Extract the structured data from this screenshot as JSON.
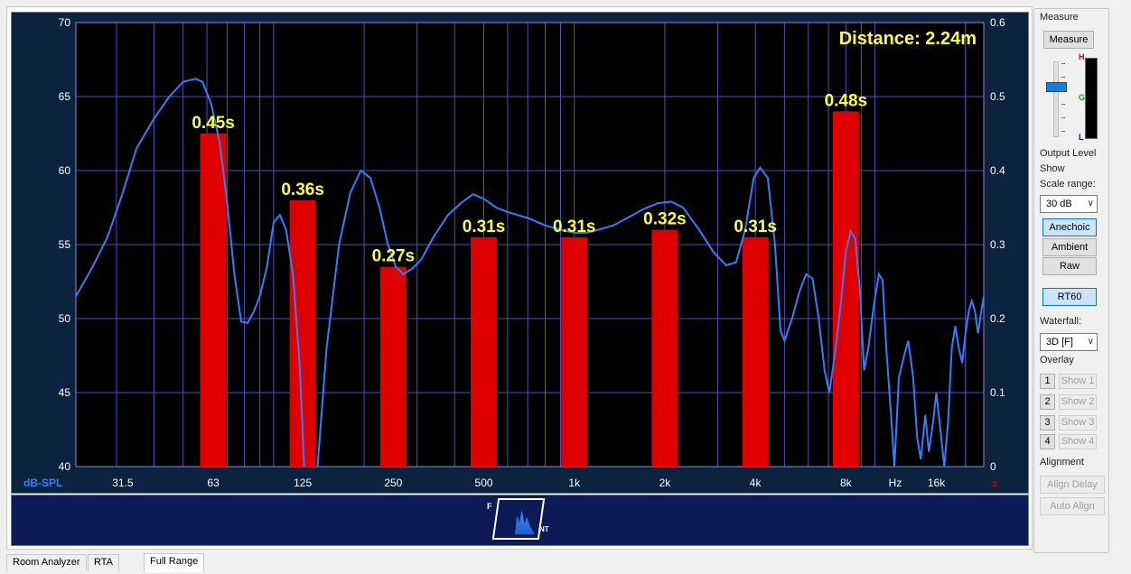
{
  "chart_data": {
    "type": "bar",
    "annotation": "Distance: 2.24m",
    "left_axis": {
      "label": "dB-SPL",
      "ylim": [
        40,
        70
      ],
      "ticks": [
        "40",
        "45",
        "50",
        "55",
        "60",
        "65",
        "70"
      ]
    },
    "right_axis": {
      "unit": "s",
      "ylim": [
        0,
        0.6
      ],
      "ticks": [
        "0",
        "0.1",
        "0.2",
        "0.3",
        "0.4",
        "0.5",
        "0.6"
      ]
    },
    "x_axis": {
      "unit": "Hz",
      "scale": "log",
      "xlim": [
        22,
        23000
      ],
      "ticks": [
        {
          "f": 31.5,
          "label": "31.5"
        },
        {
          "f": 63,
          "label": "63"
        },
        {
          "f": 125,
          "label": "125"
        },
        {
          "f": 250,
          "label": "250"
        },
        {
          "f": 500,
          "label": "500"
        },
        {
          "f": 1000,
          "label": "1k"
        },
        {
          "f": 2000,
          "label": "2k"
        },
        {
          "f": 4000,
          "label": "4k"
        },
        {
          "f": 8000,
          "label": "8k"
        },
        {
          "f": 16000,
          "label": "16k"
        }
      ]
    },
    "rt60_bars": [
      {
        "f": 63,
        "value": 0.45,
        "label": "0.45s"
      },
      {
        "f": 125,
        "value": 0.36,
        "label": "0.36s"
      },
      {
        "f": 250,
        "value": 0.27,
        "label": "0.27s"
      },
      {
        "f": 500,
        "value": 0.31,
        "label": "0.31s"
      },
      {
        "f": 1000,
        "value": 0.31,
        "label": "0.31s"
      },
      {
        "f": 2000,
        "value": 0.32,
        "label": "0.32s"
      },
      {
        "f": 4000,
        "value": 0.31,
        "label": "0.31s"
      },
      {
        "f": 8000,
        "value": 0.48,
        "label": "0.48s"
      }
    ],
    "spl_curve": [
      [
        22,
        51.5
      ],
      [
        25,
        53.5
      ],
      [
        28,
        55.5
      ],
      [
        31.5,
        58.5
      ],
      [
        35,
        61.5
      ],
      [
        40,
        63.5
      ],
      [
        45,
        65
      ],
      [
        50,
        66
      ],
      [
        55,
        66.2
      ],
      [
        58,
        66
      ],
      [
        62,
        64.5
      ],
      [
        66,
        62
      ],
      [
        70,
        58
      ],
      [
        74,
        53
      ],
      [
        78,
        49.8
      ],
      [
        82,
        49.7
      ],
      [
        86,
        50.5
      ],
      [
        90,
        51.5
      ],
      [
        95,
        53.5
      ],
      [
        100,
        56.5
      ],
      [
        105,
        57
      ],
      [
        110,
        56
      ],
      [
        116,
        53
      ],
      [
        122,
        47
      ],
      [
        127,
        39
      ],
      [
        130,
        38
      ],
      [
        140,
        40
      ],
      [
        150,
        48
      ],
      [
        165,
        55
      ],
      [
        180,
        58.5
      ],
      [
        195,
        60
      ],
      [
        210,
        59.5
      ],
      [
        225,
        57.5
      ],
      [
        240,
        55
      ],
      [
        255,
        53.5
      ],
      [
        270,
        53
      ],
      [
        290,
        53.4
      ],
      [
        310,
        54
      ],
      [
        340,
        55.5
      ],
      [
        380,
        57
      ],
      [
        420,
        57.8
      ],
      [
        460,
        58.4
      ],
      [
        500,
        58.1
      ],
      [
        550,
        57.5
      ],
      [
        600,
        57.2
      ],
      [
        700,
        56.8
      ],
      [
        800,
        56.3
      ],
      [
        900,
        56
      ],
      [
        1000,
        55.8
      ],
      [
        1100,
        55.8
      ],
      [
        1200,
        56
      ],
      [
        1350,
        56.3
      ],
      [
        1500,
        56.8
      ],
      [
        1700,
        57.4
      ],
      [
        1900,
        57.8
      ],
      [
        2100,
        57.9
      ],
      [
        2300,
        57.5
      ],
      [
        2600,
        56
      ],
      [
        2900,
        54.5
      ],
      [
        3200,
        53.6
      ],
      [
        3450,
        53.8
      ],
      [
        3700,
        56
      ],
      [
        3950,
        59.5
      ],
      [
        4150,
        60.2
      ],
      [
        4400,
        59.5
      ],
      [
        4650,
        55
      ],
      [
        4850,
        49.2
      ],
      [
        5000,
        48.5
      ],
      [
        5300,
        50
      ],
      [
        5600,
        51.8
      ],
      [
        5900,
        53
      ],
      [
        6200,
        52.7
      ],
      [
        6500,
        50
      ],
      [
        6800,
        46.5
      ],
      [
        7050,
        45
      ],
      [
        7400,
        48
      ],
      [
        7700,
        51
      ],
      [
        8000,
        54.5
      ],
      [
        8300,
        55.9
      ],
      [
        8600,
        55.4
      ],
      [
        8900,
        52
      ],
      [
        9200,
        46.5
      ],
      [
        9500,
        48
      ],
      [
        9900,
        50.8
      ],
      [
        10300,
        53
      ],
      [
        10600,
        52.6
      ],
      [
        10900,
        48
      ],
      [
        11300,
        43.5
      ],
      [
        11600,
        40
      ],
      [
        12000,
        46
      ],
      [
        12500,
        47.5
      ],
      [
        12900,
        48.5
      ],
      [
        13400,
        46
      ],
      [
        13800,
        42
      ],
      [
        14200,
        40.5
      ],
      [
        14700,
        43.5
      ],
      [
        15100,
        41
      ],
      [
        15600,
        43
      ],
      [
        16000,
        45
      ],
      [
        16500,
        42.5
      ],
      [
        17000,
        40
      ],
      [
        17500,
        43
      ],
      [
        18000,
        48
      ],
      [
        18500,
        49.5
      ],
      [
        19000,
        48
      ],
      [
        19500,
        47
      ],
      [
        20000,
        49
      ],
      [
        20500,
        50.5
      ],
      [
        21000,
        51.2
      ],
      [
        21500,
        50.5
      ],
      [
        22000,
        49
      ],
      [
        22500,
        50.3
      ],
      [
        23000,
        51.5
      ]
    ]
  },
  "sidebar": {
    "measure": {
      "title": "Measure",
      "button": "Measure",
      "output_label": "Output Level",
      "meter_labels": [
        "H",
        "G",
        "L"
      ]
    },
    "show": {
      "title": "Show",
      "scale_label": "Scale range:",
      "scale_value": "30 dB",
      "anechoic": "Anechoic",
      "ambient": "Ambient",
      "raw": "Raw",
      "rt60": "RT60",
      "waterfall_label": "Waterfall:",
      "waterfall_value": "3D [F]"
    },
    "overlay": {
      "title": "Overlay",
      "items": [
        {
          "num": "1",
          "show": "Show 1"
        },
        {
          "num": "2",
          "show": "Show 2"
        },
        {
          "num": "3",
          "show": "Show 3"
        },
        {
          "num": "4",
          "show": "Show 4"
        }
      ]
    },
    "alignment": {
      "title": "Alignment",
      "align_delay": "Align Delay",
      "auto_align": "Auto Align"
    }
  },
  "waterfall": {
    "corner_left": "F",
    "corner_right": "NT"
  },
  "tabs": [
    {
      "label": "Room Analyzer"
    },
    {
      "label": "RTA"
    },
    {
      "label": "Full Range",
      "active": true
    }
  ],
  "colors": {
    "curve": "#2f7fff",
    "bar": "#e00000",
    "bar_label": "#ffff33",
    "grid": "#5050c0",
    "plot_bg": "#000000"
  }
}
